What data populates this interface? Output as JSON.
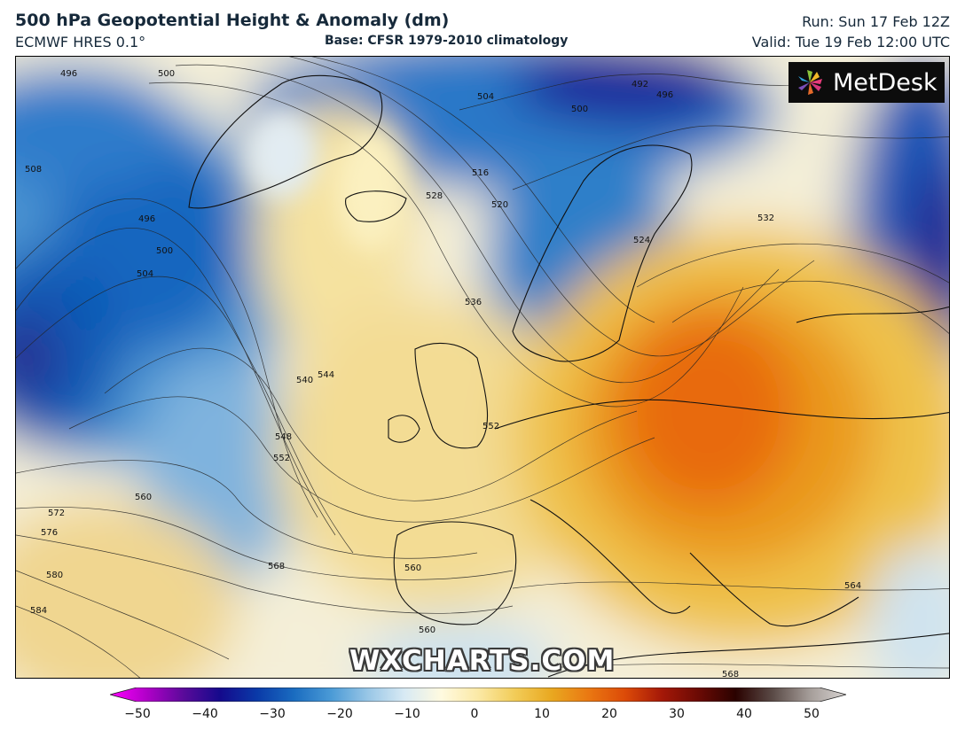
{
  "header": {
    "title": "500 hPa Geopotential Height & Anomaly (dm)",
    "model": "ECMWF HRES 0.1°",
    "base": "Base: CFSR 1979-2010 climatology",
    "run": "Run: Sun 17 Feb 12Z",
    "valid": "Valid: Tue 19 Feb 12:00 UTC"
  },
  "brand": {
    "logo_text": "MetDesk",
    "watermark": "WXCHARTS.COM"
  },
  "colorbar": {
    "ticks": [
      "−50",
      "−40",
      "−30",
      "−20",
      "−10",
      "0",
      "10",
      "20",
      "30",
      "40",
      "50"
    ],
    "colors": [
      "#ff00ff",
      "#b000c8",
      "#5a0a9a",
      "#140a8c",
      "#0a3aa8",
      "#1a6cc0",
      "#4a9ad6",
      "#98c6e6",
      "#d8eaf4",
      "#fffae0",
      "#fbe9a6",
      "#f2cc58",
      "#e9a820",
      "#ea7812",
      "#dc4a08",
      "#a41808",
      "#6a0a04",
      "#2a0200",
      "#5a4a46",
      "#a49c98",
      "#d8d4d2"
    ]
  },
  "contour_labels": [
    "496",
    "500",
    "508",
    "496",
    "500",
    "504",
    "528",
    "504",
    "500",
    "492",
    "496",
    "516",
    "520",
    "528",
    "524",
    "532",
    "536",
    "540",
    "544",
    "548",
    "552",
    "552",
    "560",
    "572",
    "576",
    "580",
    "584",
    "568",
    "560",
    "564",
    "560",
    "568",
    "564"
  ]
}
